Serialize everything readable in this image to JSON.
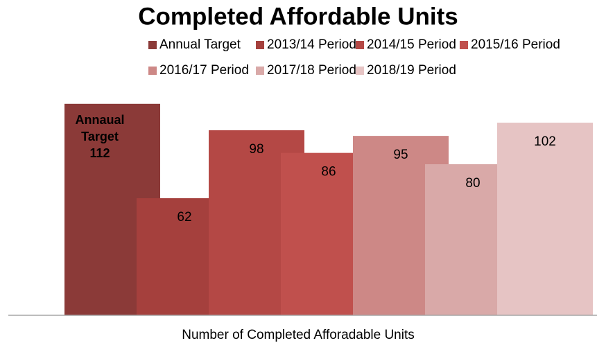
{
  "chart_data": {
    "type": "bar",
    "title": "Completed Affordable Units",
    "x_label": "Number of Completed Afforadable Units",
    "categories": [
      null
    ],
    "ylim": [
      0,
      120
    ],
    "legend": "top",
    "series": [
      {
        "name": "Annual Target",
        "color": "#8b3a38",
        "values": [
          112
        ],
        "value_labels": [
          "Annaual Target 112"
        ]
      },
      {
        "name": "2013/14 Period",
        "color": "#a5403d",
        "values": [
          62
        ]
      },
      {
        "name": "2014/15 Period",
        "color": "#b44845",
        "values": [
          98
        ]
      },
      {
        "name": "2015/16 Period",
        "color": "#c0504d",
        "values": [
          86
        ]
      },
      {
        "name": "2016/17 Period",
        "color": "#cd8886",
        "values": [
          95
        ]
      },
      {
        "name": "2017/18 Period",
        "color": "#d9a9a8",
        "values": [
          80
        ]
      },
      {
        "name": "2018/19 Period",
        "color": "#e6c4c4",
        "values": [
          102
        ]
      }
    ]
  }
}
